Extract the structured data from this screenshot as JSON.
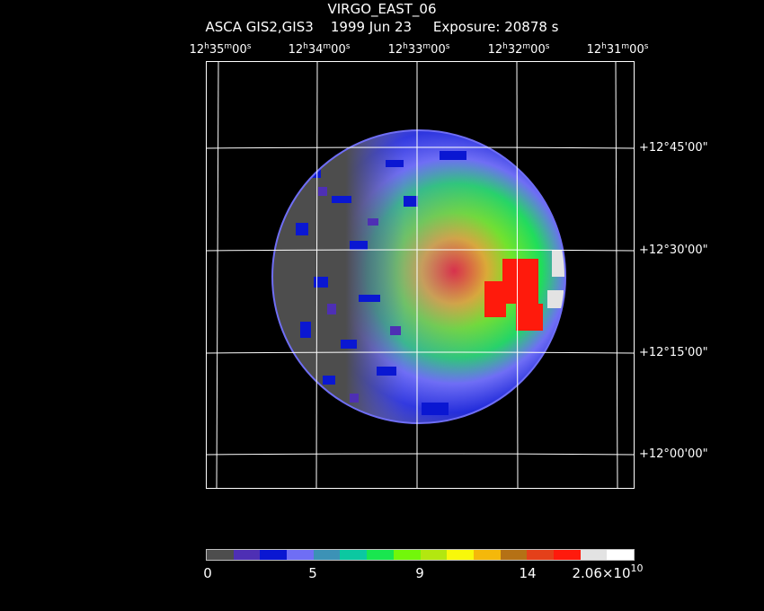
{
  "header": {
    "object_name": "VIRGO_EAST_06",
    "subtitle": "ASCA GIS2,GIS3    1999 Jun 23     Exposure: 20878 s"
  },
  "ra_axis": {
    "labels": [
      {
        "h": "12",
        "m": "35",
        "s": "00"
      },
      {
        "h": "12",
        "m": "34",
        "s": "00"
      },
      {
        "h": "12",
        "m": "33",
        "s": "00"
      },
      {
        "h": "12",
        "m": "32",
        "s": "00"
      },
      {
        "h": "12",
        "m": "31",
        "s": "00"
      }
    ],
    "h_unit": "h",
    "m_unit": "m",
    "s_unit": "s"
  },
  "dec_axis": {
    "labels": [
      "+12°45'00\"",
      "+12°30'00\"",
      "+12°15'00\"",
      "+12°00'00\""
    ]
  },
  "colorbar": {
    "colors": [
      "#4d4d4d",
      "#4e2fb4",
      "#0a17d2",
      "#6f6ef5",
      "#3c92b6",
      "#0bc8a1",
      "#19e64f",
      "#72f70a",
      "#b3e710",
      "#f8f80a",
      "#f5b80a",
      "#b57115",
      "#e4401a",
      "#ff1a0c",
      "#e3e3e3",
      "#ffffff"
    ],
    "tick_labels": [
      "0",
      "5",
      "9",
      "14"
    ],
    "max_label_base": "2.06×10",
    "max_label_exp": "10"
  },
  "image": {
    "description_colors": {
      "background": "#000000",
      "grid": "#ffffff",
      "low": "#4d4d4d",
      "high": "#ff1a0c"
    }
  }
}
